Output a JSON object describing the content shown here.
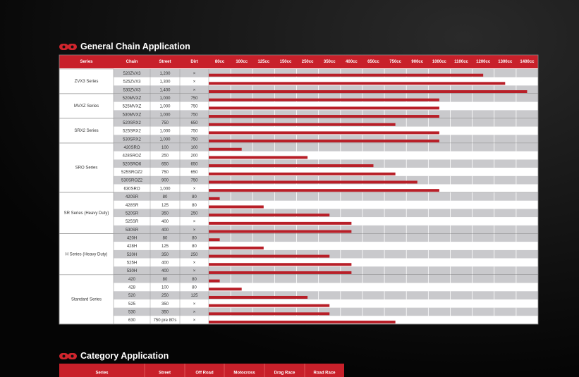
{
  "sections": [
    {
      "title": "General Chain Application",
      "headers": [
        "Series",
        "Chain",
        "Street",
        "Dirt"
      ],
      "cc_columns": [
        {
          "value": 80,
          "label": "80cc"
        },
        {
          "value": 100,
          "label": "100cc"
        },
        {
          "value": 125,
          "label": "125cc"
        },
        {
          "value": 150,
          "label": "150cc"
        },
        {
          "value": 250,
          "label": "250cc"
        },
        {
          "value": 350,
          "label": "350cc"
        },
        {
          "value": 400,
          "label": "400cc"
        },
        {
          "value": 650,
          "label": "650cc"
        },
        {
          "value": 750,
          "label": "750cc"
        },
        {
          "value": 900,
          "label": "900cc"
        },
        {
          "value": 1000,
          "label": "1000cc"
        },
        {
          "value": 1100,
          "label": "1100cc"
        },
        {
          "value": 1200,
          "label": "1200cc"
        },
        {
          "value": 1300,
          "label": "1300cc"
        },
        {
          "value": 1400,
          "label": "1400cc"
        }
      ],
      "groups": [
        {
          "series": "ZVX3 Series",
          "rows": [
            {
              "chain": "520ZVX3",
              "street": "1,200",
              "dirt": "×",
              "bar": 1200
            },
            {
              "chain": "525ZVX3",
              "street": "1,300",
              "dirt": "×",
              "bar": 1300
            },
            {
              "chain": "530ZVX3",
              "street": "1,400",
              "dirt": "×",
              "bar": 1400
            }
          ]
        },
        {
          "series": "MVXZ Series",
          "rows": [
            {
              "chain": "520MVXZ",
              "street": "1,000",
              "dirt": "750",
              "bar": 1000
            },
            {
              "chain": "525MVXZ",
              "street": "1,000",
              "dirt": "750",
              "bar": 1000
            },
            {
              "chain": "530MVXZ",
              "street": "1,000",
              "dirt": "750",
              "bar": 1000
            }
          ]
        },
        {
          "series": "SRX2 Series",
          "rows": [
            {
              "chain": "520SRX2",
              "street": "750",
              "dirt": "650",
              "bar": 750
            },
            {
              "chain": "525SRX2",
              "street": "1,000",
              "dirt": "750",
              "bar": 1000
            },
            {
              "chain": "530SRX2",
              "street": "1,000",
              "dirt": "750",
              "bar": 1000
            }
          ]
        },
        {
          "series": "SRO Series",
          "rows": [
            {
              "chain": "420SRO",
              "street": "100",
              "dirt": "100",
              "bar": 100
            },
            {
              "chain": "428SROZ",
              "street": "250",
              "dirt": "200",
              "bar": 250
            },
            {
              "chain": "520SRO6",
              "street": "650",
              "dirt": "650",
              "bar": 650
            },
            {
              "chain": "525SROZ2",
              "street": "750",
              "dirt": "650",
              "bar": 750
            },
            {
              "chain": "530SROZ2",
              "street": "900",
              "dirt": "750",
              "bar": 900
            },
            {
              "chain": "630SRO",
              "street": "1,000",
              "dirt": "×",
              "bar": 1000
            }
          ]
        },
        {
          "series": "SR Series (Heavy Duty)",
          "rows": [
            {
              "chain": "420SR",
              "street": "80",
              "dirt": "80",
              "bar": 80
            },
            {
              "chain": "428SR",
              "street": "125",
              "dirt": "80",
              "bar": 125
            },
            {
              "chain": "520SR",
              "street": "350",
              "dirt": "250",
              "bar": 350
            },
            {
              "chain": "525SR",
              "street": "400",
              "dirt": "×",
              "bar": 400
            },
            {
              "chain": "530SR",
              "street": "400",
              "dirt": "×",
              "bar": 400
            }
          ]
        },
        {
          "series": "H Series (Heavy Duty)",
          "rows": [
            {
              "chain": "420H",
              "street": "80",
              "dirt": "80",
              "bar": 80
            },
            {
              "chain": "428H",
              "street": "125",
              "dirt": "80",
              "bar": 125
            },
            {
              "chain": "520H",
              "street": "350",
              "dirt": "250",
              "bar": 350
            },
            {
              "chain": "525H",
              "street": "400",
              "dirt": "×",
              "bar": 400
            },
            {
              "chain": "530H",
              "street": "400",
              "dirt": "×",
              "bar": 400
            }
          ]
        },
        {
          "series": "Standard Series",
          "rows": [
            {
              "chain": "420",
              "street": "80",
              "dirt": "80",
              "bar": 80
            },
            {
              "chain": "428",
              "street": "100",
              "dirt": "80",
              "bar": 100
            },
            {
              "chain": "520",
              "street": "250",
              "dirt": "125",
              "bar": 250
            },
            {
              "chain": "525",
              "street": "350",
              "dirt": "×",
              "bar": 350
            },
            {
              "chain": "530",
              "street": "350",
              "dirt": "×",
              "bar": 350
            },
            {
              "chain": "630",
              "street": "750 pre 80's",
              "dirt": "×",
              "bar": 750
            }
          ]
        }
      ]
    },
    {
      "title": "Category Application",
      "headers": [
        "Series",
        "Street",
        "Off Road",
        "Motocross",
        "Drag Race",
        "Road Race"
      ]
    }
  ]
}
